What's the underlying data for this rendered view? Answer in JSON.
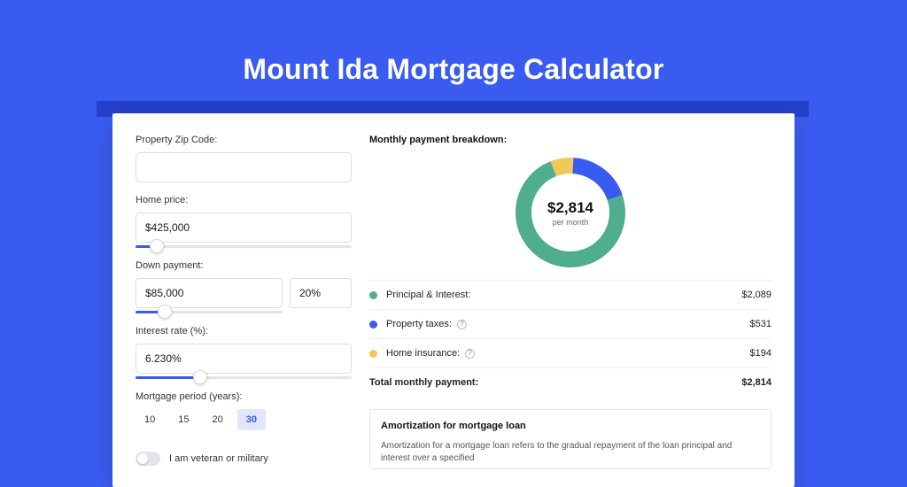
{
  "page": {
    "title": "Mount Ida Mortgage Calculator",
    "background_color": "#3a5bf0",
    "accent_bar_color": "#2340c8"
  },
  "form": {
    "zip_label": "Property Zip Code:",
    "zip_value": "",
    "home_price_label": "Home price:",
    "home_price_value": "$425,000",
    "home_price_slider_pct": 10,
    "down_payment_label": "Down payment:",
    "down_payment_value": "$85,000",
    "down_payment_pct_value": "20%",
    "down_payment_slider_pct": 20,
    "interest_label": "Interest rate (%):",
    "interest_value": "6.230%",
    "interest_slider_pct": 30,
    "period_label": "Mortgage period (years):",
    "periods": [
      "10",
      "15",
      "20",
      "30"
    ],
    "period_selected_index": 3,
    "veteran_label": "I am veteran or military",
    "veteran_on": false
  },
  "breakdown": {
    "title": "Monthly payment breakdown:",
    "center_amount": "$2,814",
    "center_sub": "per month",
    "slices": [
      {
        "label": "Principal & Interest:",
        "value": "$2,089",
        "pct": 74.2,
        "color": "#4fae8d"
      },
      {
        "label": "Property taxes:",
        "value": "$531",
        "pct": 18.9,
        "color": "#3a5bf0",
        "help": true
      },
      {
        "label": "Home insurance:",
        "value": "$194",
        "pct": 6.9,
        "color": "#f0c95b",
        "help": true
      }
    ],
    "total_label": "Total monthly payment:",
    "total_value": "$2,814"
  },
  "amortization": {
    "title": "Amortization for mortgage loan",
    "body": "Amortization for a mortgage loan refers to the gradual repayment of the loan principal and interest over a specified"
  },
  "donut_style": {
    "outer_radius": 62,
    "stroke_width": 18,
    "background": "#ffffff"
  }
}
